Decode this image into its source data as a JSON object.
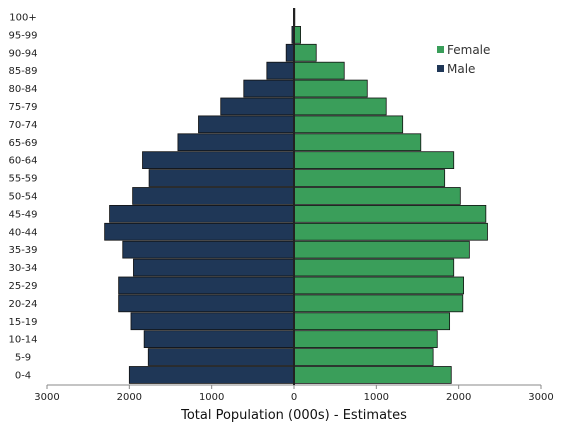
{
  "chart_data": {
    "type": "bar",
    "orientation": "horizontal-pyramid",
    "categories": [
      "0-4",
      "5-9",
      "10-14",
      "15-19",
      "20-24",
      "25-29",
      "30-34",
      "35-39",
      "40-44",
      "45-49",
      "50-54",
      "55-59",
      "60-64",
      "65-69",
      "70-74",
      "75-79",
      "80-84",
      "85-89",
      "90-94",
      "95-99",
      "100+"
    ],
    "series": [
      {
        "name": "Male",
        "color": "#1f3757",
        "values": [
          2000,
          1770,
          1820,
          1980,
          2130,
          2130,
          1950,
          2080,
          2300,
          2240,
          1960,
          1760,
          1840,
          1410,
          1160,
          890,
          610,
          330,
          95,
          25,
          5
        ]
      },
      {
        "name": "Female",
        "color": "#3a9e5a",
        "values": [
          1910,
          1690,
          1740,
          1890,
          2050,
          2060,
          1940,
          2130,
          2350,
          2330,
          2020,
          1830,
          1940,
          1540,
          1320,
          1120,
          890,
          610,
          270,
          80,
          10
        ]
      }
    ],
    "xlim": [
      -3000,
      3000
    ],
    "xticks": [
      "3000",
      "2000",
      "1000",
      "0",
      "1000",
      "2000",
      "3000"
    ],
    "xlabel": "Total Population (000s) - Estimates",
    "legend": {
      "position": "top-right",
      "entries": [
        "Female",
        "Male"
      ]
    },
    "grid": false
  }
}
